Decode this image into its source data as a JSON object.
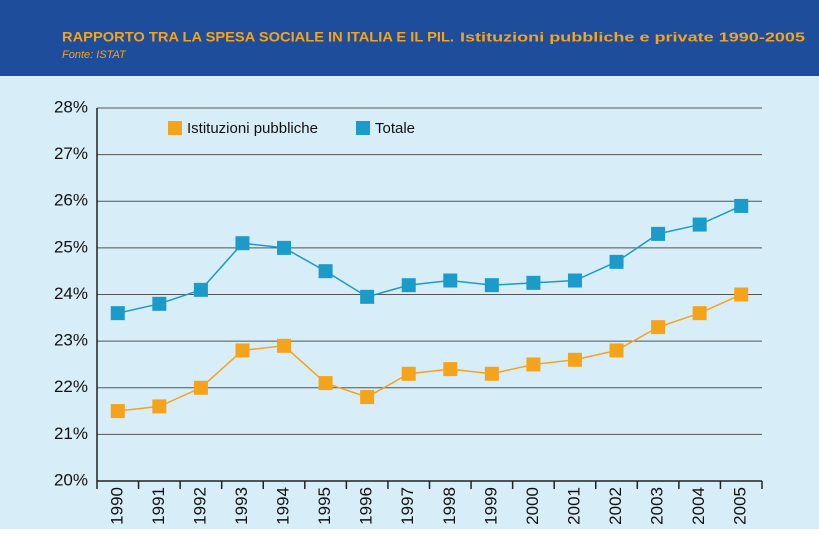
{
  "chart_data": {
    "type": "line",
    "title": "RAPPORTO TRA LA SPESA SOCIALE IN ITALIA E IL PIL.",
    "subtitle": "Istituzioni pubbliche e private 1990-2005",
    "source": "Fonte: ISTAT",
    "categories": [
      "1990",
      "1991",
      "1992",
      "1993",
      "1994",
      "1995",
      "1996",
      "1997",
      "1998",
      "1999",
      "2000",
      "2001",
      "2002",
      "2003",
      "2004",
      "2005"
    ],
    "series": [
      {
        "name": "Istituzioni pubbliche",
        "color": "#f5a31a",
        "values": [
          21.5,
          21.6,
          22.0,
          22.8,
          22.9,
          22.1,
          21.8,
          22.3,
          22.4,
          22.3,
          22.5,
          22.6,
          22.8,
          23.3,
          23.6,
          24.0
        ]
      },
      {
        "name": "Totale",
        "color": "#1b9bc9",
        "values": [
          23.6,
          23.8,
          24.1,
          25.1,
          25.0,
          24.5,
          23.95,
          24.2,
          24.3,
          24.2,
          24.25,
          24.3,
          24.7,
          25.3,
          25.5,
          25.9
        ]
      }
    ],
    "ylim": [
      20,
      28
    ],
    "yticks": [
      {
        "value": 20,
        "label": "20%"
      },
      {
        "value": 21,
        "label": "21%"
      },
      {
        "value": 22,
        "label": "22%"
      },
      {
        "value": 23,
        "label": "23%"
      },
      {
        "value": 24,
        "label": "24%"
      },
      {
        "value": 25,
        "label": "25%"
      },
      {
        "value": 26,
        "label": "26%"
      },
      {
        "value": 27,
        "label": "27%"
      },
      {
        "value": 28,
        "label": "28%"
      }
    ],
    "grid": true,
    "legend": "top"
  }
}
